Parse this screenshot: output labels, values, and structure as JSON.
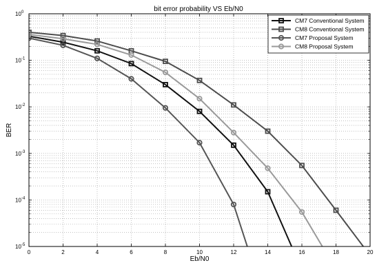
{
  "chart_data": {
    "type": "line",
    "title": "bit error probability VS Eb/N0",
    "xlabel": "Eb/N0",
    "ylabel": "BER",
    "xlim": [
      0,
      20
    ],
    "ylim": [
      1e-05,
      1
    ],
    "yscale": "log",
    "grid": true,
    "legend_position": "top-right",
    "x_ticks": [
      "0",
      "2",
      "4",
      "6",
      "8",
      "10",
      "12",
      "14",
      "16",
      "18",
      "20"
    ],
    "y_ticks": [
      {
        "base": "10",
        "exp": "0"
      },
      {
        "base": "10",
        "exp": "-1"
      },
      {
        "base": "10",
        "exp": "-2"
      },
      {
        "base": "10",
        "exp": "-3"
      },
      {
        "base": "10",
        "exp": "-4"
      },
      {
        "base": "10",
        "exp": "-5"
      }
    ],
    "series": [
      {
        "name": "CM7 Conventional System",
        "color": "#111111",
        "marker": "square",
        "x": [
          0,
          2,
          4,
          6,
          8,
          10,
          12,
          14,
          15.4
        ],
        "y": [
          0.33,
          0.245,
          0.16,
          0.085,
          0.03,
          0.008,
          0.0015,
          0.00015,
          1e-05
        ]
      },
      {
        "name": "CM8 Conventional System",
        "color": "#4d4d4d",
        "marker": "square",
        "x": [
          0,
          2,
          4,
          6,
          8,
          10,
          12,
          14,
          16,
          18,
          19.6
        ],
        "y": [
          0.4,
          0.34,
          0.26,
          0.16,
          0.095,
          0.037,
          0.011,
          0.003,
          0.00055,
          6e-05,
          1e-05
        ]
      },
      {
        "name": "CM7 Proposal System",
        "color": "#555555",
        "marker": "circle",
        "x": [
          0,
          2,
          4,
          6,
          8,
          10,
          12,
          12.8
        ],
        "y": [
          0.3,
          0.21,
          0.11,
          0.04,
          0.0095,
          0.0017,
          8e-05,
          1e-05
        ]
      },
      {
        "name": "CM8 Proposal System",
        "color": "#9a9a9a",
        "marker": "circle",
        "x": [
          0,
          2,
          4,
          6,
          8,
          10,
          12,
          14,
          16,
          17.2
        ],
        "y": [
          0.36,
          0.29,
          0.22,
          0.13,
          0.055,
          0.015,
          0.0028,
          0.00048,
          5.5e-05,
          1e-05
        ]
      }
    ]
  }
}
